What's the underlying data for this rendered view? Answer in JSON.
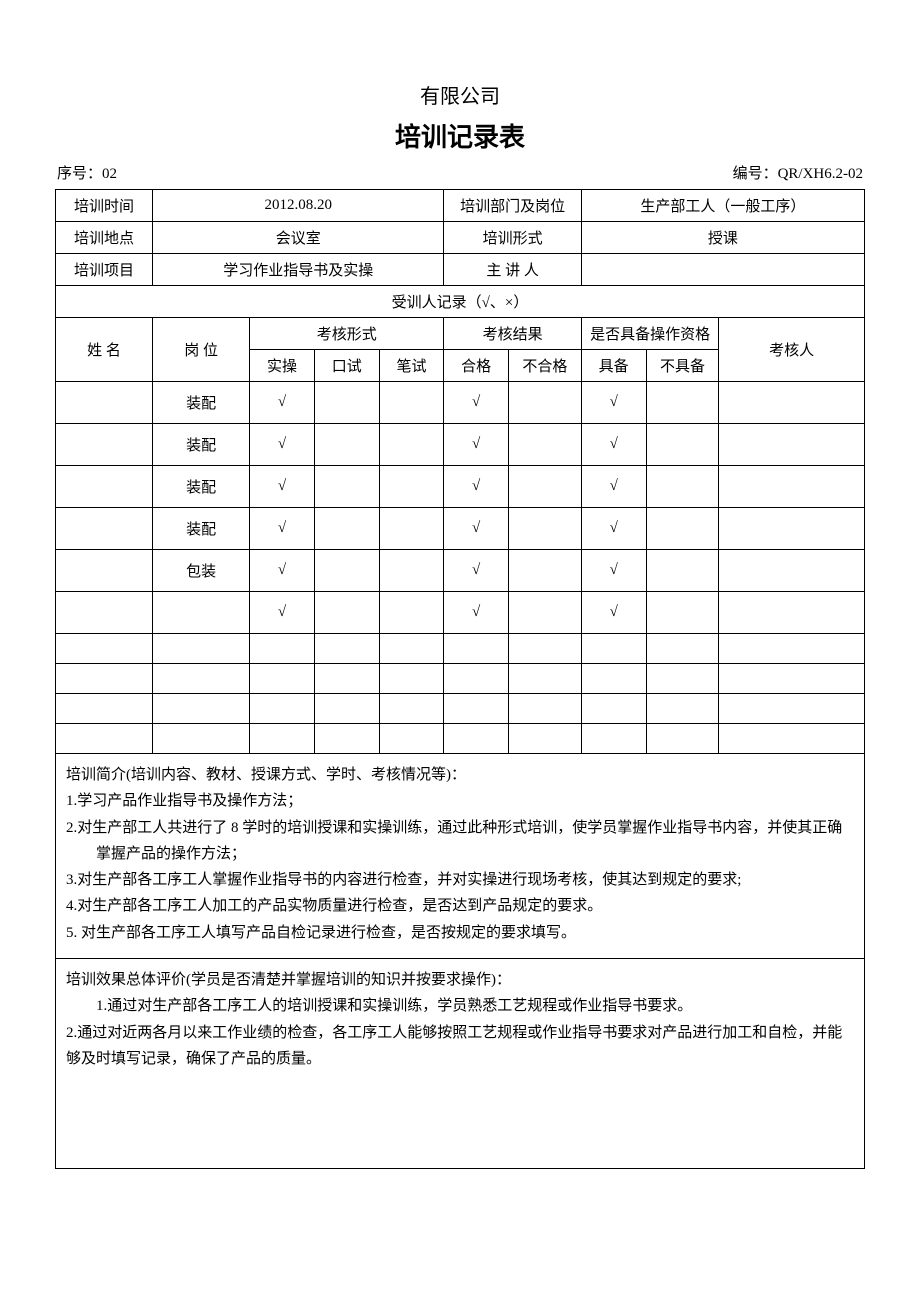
{
  "header": {
    "company": "有限公司",
    "title": "培训记录表",
    "serial_label": "序号：",
    "serial_value": "02",
    "code_label": "编号：",
    "code_value": "QR/XH6.2-02"
  },
  "info": {
    "time_label": "培训时间",
    "time_value": "2012.08.20",
    "dept_label": "培训部门及岗位",
    "dept_value": "生产部工人（一般工序）",
    "place_label": "培训地点",
    "place_value": "会议室",
    "form_label": "培训形式",
    "form_value": "授课",
    "project_label": "培训项目",
    "project_value": "学习作业指导书及实操",
    "speaker_label": "主 讲 人",
    "speaker_value": ""
  },
  "record_header": "受训人记录（√、×）",
  "columns": {
    "name": "姓  名",
    "post": "岗  位",
    "assess_form": "考核形式",
    "assess_result": "考核结果",
    "qualification": "是否具备操作资格",
    "assessor": "考核人",
    "practical": "实操",
    "oral": "口试",
    "written": "笔试",
    "pass": "合格",
    "fail": "不合格",
    "has": "具备",
    "not_has": "不具备"
  },
  "rows": [
    {
      "name": "",
      "post": "装配",
      "practical": "√",
      "oral": "",
      "written": "",
      "pass": "√",
      "fail": "",
      "has": "√",
      "not_has": "",
      "assessor": ""
    },
    {
      "name": "",
      "post": "装配",
      "practical": "√",
      "oral": "",
      "written": "",
      "pass": "√",
      "fail": "",
      "has": "√",
      "not_has": "",
      "assessor": ""
    },
    {
      "name": "",
      "post": "装配",
      "practical": "√",
      "oral": "",
      "written": "",
      "pass": "√",
      "fail": "",
      "has": "√",
      "not_has": "",
      "assessor": ""
    },
    {
      "name": "",
      "post": "装配",
      "practical": "√",
      "oral": "",
      "written": "",
      "pass": "√",
      "fail": "",
      "has": "√",
      "not_has": "",
      "assessor": ""
    },
    {
      "name": "",
      "post": "包装",
      "practical": "√",
      "oral": "",
      "written": "",
      "pass": "√",
      "fail": "",
      "has": "√",
      "not_has": "",
      "assessor": ""
    },
    {
      "name": "",
      "post": "",
      "practical": "√",
      "oral": "",
      "written": "",
      "pass": "√",
      "fail": "",
      "has": "√",
      "not_has": "",
      "assessor": ""
    }
  ],
  "empty_rows": 4,
  "summary": {
    "intro_label": "培训简介(培训内容、教材、授课方式、学时、考核情况等)：",
    "intro_lines": [
      "1.学习产品作业指导书及操作方法；",
      "2.对生产部工人共进行了 8 学时的培训授课和实操训练，通过此种形式培训，使学员掌握作业指导书内容，并使其正确掌握产品的操作方法；",
      "3.对生产部各工序工人掌握作业指导书的内容进行检查，并对实操进行现场考核，使其达到规定的要求;",
      "4.对生产部各工序工人加工的产品实物质量进行检查，是否达到产品规定的要求。",
      "5. 对生产部各工序工人填写产品自检记录进行检查，是否按规定的要求填写。"
    ],
    "eval_label": "培训效果总体评价(学员是否清楚并掌握培训的知识并按要求操作)：",
    "eval_lines": [
      "1.通过对生产部各工序工人的培训授课和实操训练，学员熟悉工艺规程或作业指导书要求。",
      "2.通过对近两各月以来工作业绩的检查，各工序工人能够按照工艺规程或作业指导书要求对产品进行加工和自检，并能够及时填写记录，确保了产品的质量。"
    ]
  },
  "style": {
    "page_bg": "#ffffff",
    "text_color": "#000000",
    "border_color": "#000000",
    "title_fontsize": 26,
    "body_fontsize": 15
  }
}
